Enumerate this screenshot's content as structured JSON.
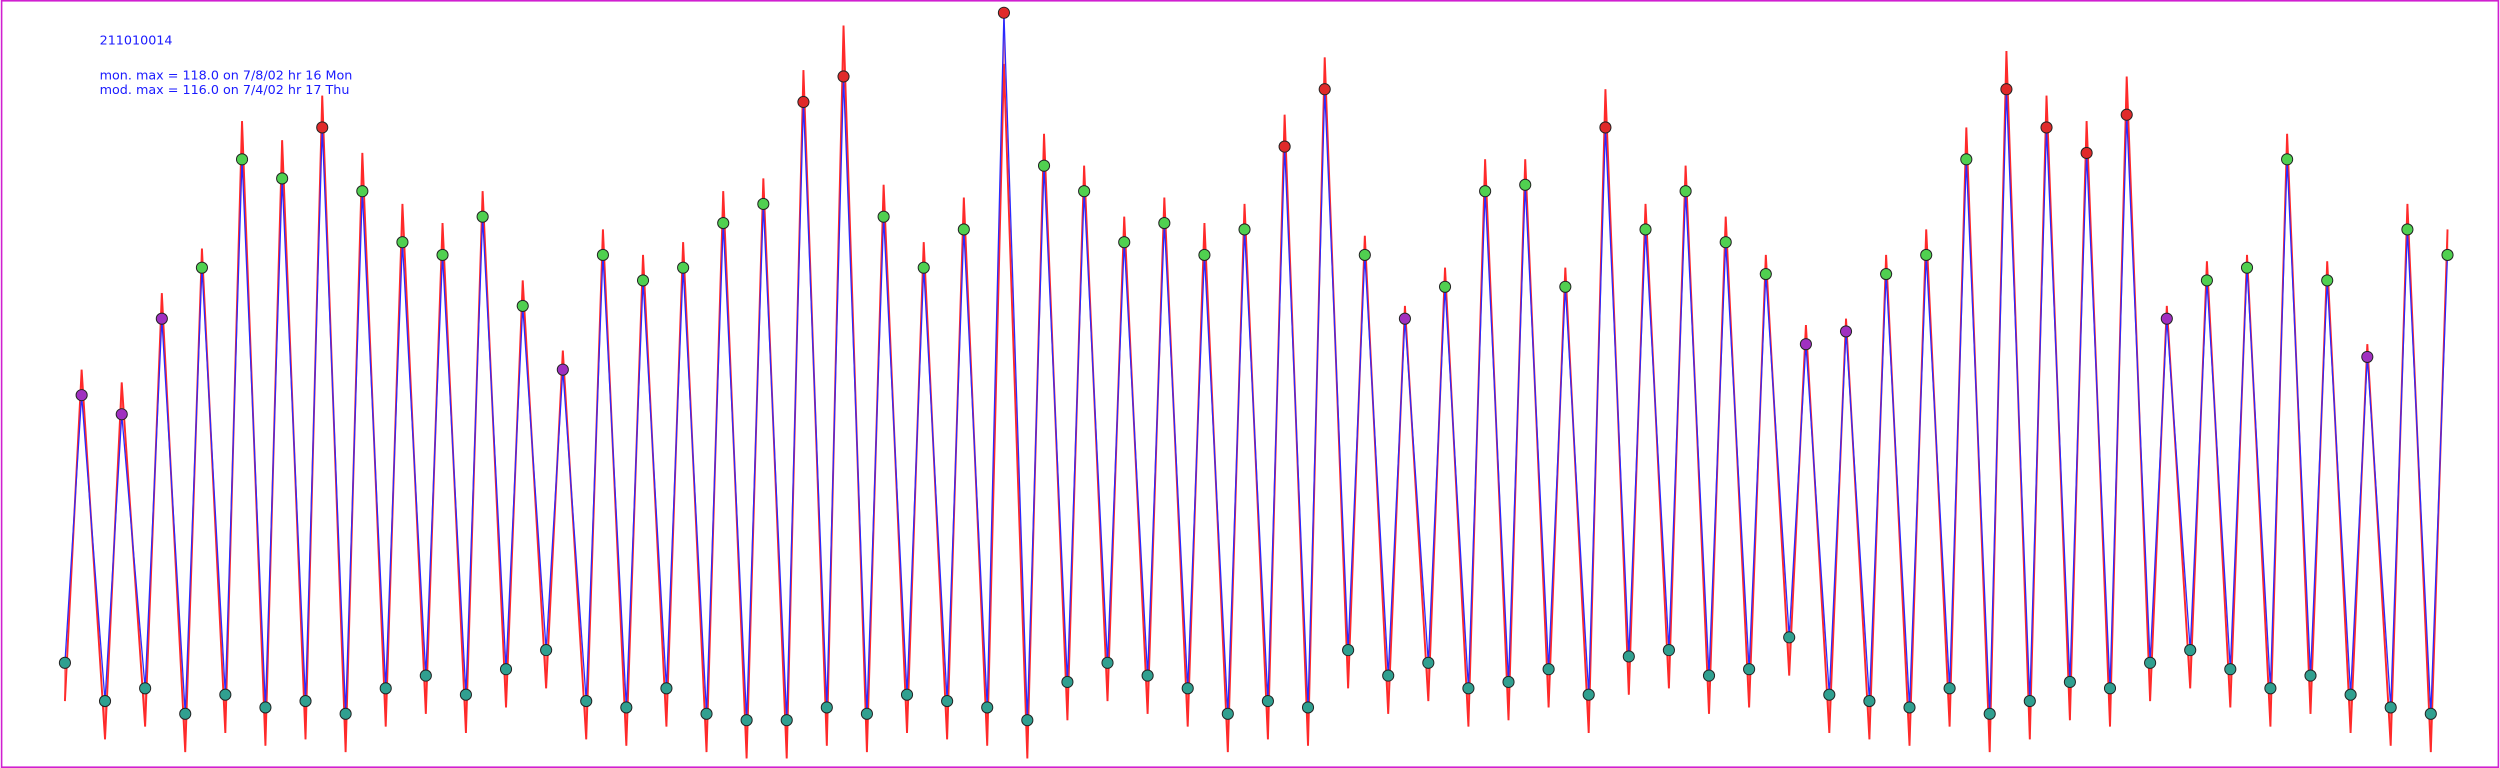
{
  "chart_data": {
    "type": "line",
    "title": "211010014",
    "annotations": [
      "mon. max =  118.0 on 7/8/02 hr 16 Mon",
      "mod. max =  116.0 on 7/4/02 hr 17 Thu"
    ],
    "x": [
      5,
      15,
      29,
      39,
      53,
      63,
      77,
      87,
      101,
      111,
      125,
      135,
      149,
      159,
      173,
      183,
      197,
      207,
      221,
      231,
      245,
      255,
      269,
      279,
      293,
      303,
      317,
      327,
      341,
      351,
      365,
      375,
      389,
      399,
      413,
      423,
      437,
      447,
      461,
      471,
      485,
      495,
      509,
      519,
      533,
      543,
      557,
      567,
      581,
      591,
      605,
      615,
      629,
      639,
      653,
      663,
      677,
      687,
      701,
      711,
      725,
      735,
      749,
      759,
      773,
      783,
      797,
      807,
      821,
      831,
      845,
      855,
      869,
      879,
      893,
      903,
      917,
      927,
      941,
      951,
      965,
      975,
      989,
      999,
      1013,
      1023,
      1037,
      1047,
      1061,
      1071,
      1085,
      1095,
      1109,
      1119,
      1133,
      1143,
      1157,
      1167,
      1181,
      1191,
      1205,
      1215,
      1229,
      1239,
      1253,
      1263,
      1277,
      1287,
      1301,
      1311,
      1325,
      1335,
      1349,
      1359,
      1373,
      1383,
      1397,
      1407,
      1421,
      1431
    ],
    "series": [
      {
        "color": "#ff2a2a",
        "style": "line",
        "values": [
          10,
          62,
          4,
          60,
          6,
          74,
          2,
          81,
          5,
          101,
          3,
          98,
          4,
          105,
          2,
          96,
          6,
          88,
          8,
          85,
          5,
          90,
          9,
          76,
          12,
          65,
          4,
          84,
          3,
          80,
          6,
          82,
          2,
          90,
          1,
          92,
          1,
          109,
          3,
          116,
          2,
          91,
          5,
          82,
          4,
          89,
          3,
          110,
          1,
          99,
          7,
          94,
          10,
          86,
          8,
          89,
          6,
          85,
          2,
          88,
          4,
          102,
          3,
          111,
          12,
          83,
          8,
          72,
          10,
          78,
          6,
          95,
          7,
          95,
          9,
          78,
          5,
          106,
          11,
          88,
          12,
          94,
          8,
          86,
          9,
          80,
          14,
          69,
          5,
          70,
          4,
          80,
          3,
          84,
          6,
          100,
          2,
          112,
          4,
          105,
          7,
          101,
          6,
          108,
          10,
          72,
          12,
          79,
          9,
          80,
          6,
          99,
          8,
          79,
          5,
          66,
          3,
          88,
          2,
          84
        ]
      },
      {
        "color": "#2a2aff",
        "style": "markers",
        "values": [
          16,
          58,
          10,
          55,
          12,
          70,
          8,
          78,
          11,
          95,
          9,
          92,
          10,
          100,
          8,
          90,
          12,
          82,
          14,
          80,
          11,
          86,
          15,
          72,
          18,
          62,
          10,
          80,
          9,
          76,
          12,
          78,
          8,
          85,
          7,
          88,
          7,
          104,
          9,
          108,
          8,
          86,
          11,
          78,
          10,
          84,
          9,
          118,
          7,
          94,
          13,
          90,
          16,
          82,
          14,
          85,
          12,
          80,
          8,
          84,
          10,
          97,
          9,
          106,
          18,
          80,
          14,
          70,
          16,
          75,
          12,
          90,
          13,
          91,
          15,
          75,
          11,
          100,
          17,
          84,
          18,
          90,
          14,
          82,
          15,
          77,
          20,
          66,
          11,
          68,
          10,
          77,
          9,
          80,
          12,
          95,
          8,
          106,
          10,
          100,
          13,
          96,
          12,
          102,
          16,
          70,
          18,
          76,
          15,
          78,
          12,
          95,
          14,
          76,
          11,
          64,
          9,
          84,
          8,
          80
        ]
      }
    ],
    "marker_colors": [
      "#30a090",
      "#3a3ae0",
      "#a030c0",
      "#50d050",
      "#e02a2a"
    ],
    "xlim": [
      0,
      1440
    ],
    "ylim": [
      0,
      120
    ],
    "frame_color": "#d020d0"
  }
}
